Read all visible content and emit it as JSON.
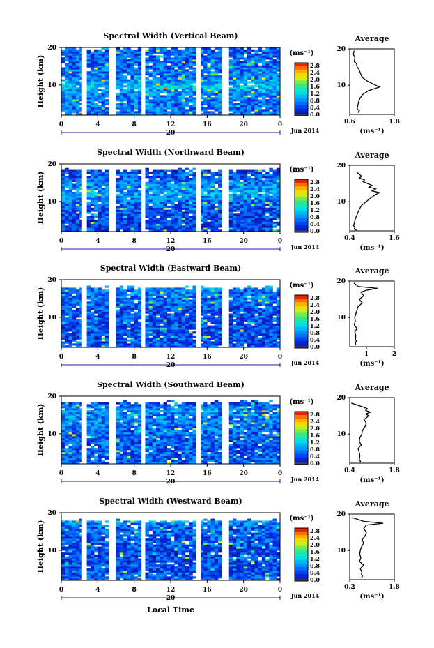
{
  "figure": {
    "xlabel": "Local Time",
    "date_label": "Jun 2014",
    "day_label": "20",
    "ylabel": "Height (km)",
    "cb_title": "(ms⁻¹)",
    "avg_title": "Average",
    "avg_xlabel": "(ms⁻¹)"
  },
  "chart_data": [
    {
      "type": "heatmap",
      "title": "Spectral Width (Vertical Beam)",
      "x_ticks": [
        "0",
        "4",
        "8",
        "12",
        "16",
        "20",
        "0"
      ],
      "y_ticks": [
        "20",
        "10"
      ],
      "cb_ticks": [
        "2.8",
        "2.4",
        "2.0",
        "1.6",
        "1.2",
        "0.8",
        "0.4",
        "0.0"
      ],
      "xlim": [
        0,
        24
      ],
      "ylim": [
        2,
        20
      ],
      "crange": [
        0,
        3.0
      ],
      "top_km": 19.5,
      "gaps": [
        [
          2.2,
          2.6
        ],
        [
          5.4,
          5.8
        ],
        [
          8.8,
          9.2
        ],
        [
          14.9,
          15.3
        ],
        [
          17.8,
          18.2
        ]
      ],
      "profile": {
        "xlim": [
          0.6,
          1.8
        ],
        "xticks": [
          "0.6",
          "1.8"
        ],
        "x": [
          0.72,
          0.7,
          0.74,
          0.72,
          0.78,
          0.8,
          0.84,
          0.86,
          0.9,
          0.92,
          0.96,
          1.02,
          1.1,
          1.2,
          1.3,
          1.4,
          1.1,
          0.95,
          0.88,
          0.84,
          0.82,
          0.8,
          0.86,
          0.82
        ],
        "y": [
          19.5,
          18.5,
          17.5,
          16.5,
          16.0,
          15.0,
          14.5,
          14.0,
          13.0,
          12.5,
          12.0,
          11.5,
          11.0,
          10.5,
          10.0,
          9.5,
          8.5,
          7.5,
          6.5,
          5.5,
          4.5,
          3.5,
          3.0,
          2.5
        ]
      }
    },
    {
      "type": "heatmap",
      "title": "Spectral Width (Northward Beam)",
      "x_ticks": [
        "0",
        "4",
        "8",
        "12",
        "16",
        "20",
        "0"
      ],
      "y_ticks": [
        "20",
        "10"
      ],
      "cb_ticks": [
        "2.8",
        "2.4",
        "2.0",
        "1.6",
        "1.2",
        "0.8",
        "0.4",
        "0.0"
      ],
      "xlim": [
        0,
        24
      ],
      "ylim": [
        2,
        20
      ],
      "crange": [
        0,
        3.0
      ],
      "top_km": 18.0,
      "gaps": [
        [
          2.2,
          2.6
        ],
        [
          5.4,
          5.8
        ],
        [
          8.8,
          9.2
        ],
        [
          14.9,
          15.3
        ],
        [
          17.8,
          18.2
        ]
      ],
      "profile": {
        "xlim": [
          0.4,
          1.6
        ],
        "xticks": [
          "0.4",
          "1.6"
        ],
        "x": [
          0.6,
          0.72,
          0.66,
          0.8,
          0.76,
          0.88,
          1.0,
          0.92,
          1.1,
          1.0,
          1.2,
          1.1,
          0.96,
          0.84,
          0.72,
          0.66,
          0.62,
          0.58,
          0.54,
          0.52,
          0.5,
          0.54,
          0.52,
          0.58
        ],
        "y": [
          18.0,
          17.0,
          16.5,
          16.0,
          15.5,
          15.0,
          14.5,
          14.0,
          13.5,
          13.0,
          12.5,
          12.0,
          11.0,
          10.0,
          9.0,
          8.0,
          7.0,
          6.0,
          5.0,
          4.0,
          3.5,
          3.0,
          2.5,
          2.2
        ]
      }
    },
    {
      "type": "heatmap",
      "title": "Spectral Width (Eastward Beam)",
      "x_ticks": [
        "0",
        "4",
        "8",
        "12",
        "16",
        "20",
        "0"
      ],
      "y_ticks": [
        "20",
        "10"
      ],
      "cb_ticks": [
        "2.8",
        "2.4",
        "2.0",
        "1.6",
        "1.2",
        "0.8",
        "0.4",
        "0.0"
      ],
      "xlim": [
        0,
        24
      ],
      "ylim": [
        2,
        20
      ],
      "crange": [
        0,
        3.0
      ],
      "top_km": 17.5,
      "gaps": [
        [
          2.2,
          2.6
        ],
        [
          5.4,
          5.8
        ],
        [
          8.8,
          9.2
        ],
        [
          14.9,
          15.3
        ],
        [
          17.8,
          18.2
        ]
      ],
      "profile": {
        "xlim": [
          0.4,
          2.0
        ],
        "xticks": [
          "1",
          "2"
        ],
        "x": [
          0.55,
          0.7,
          1.4,
          1.0,
          0.8,
          0.9,
          0.75,
          0.85,
          0.7,
          0.66,
          0.62,
          0.58,
          0.6,
          0.56,
          0.66,
          0.58,
          0.62,
          0.6,
          0.64,
          0.6,
          0.62
        ],
        "y": [
          19.5,
          18.5,
          18.0,
          17.5,
          17.0,
          16.0,
          15.0,
          14.0,
          13.0,
          12.0,
          11.0,
          10.0,
          9.0,
          8.0,
          7.0,
          6.0,
          5.0,
          4.0,
          3.5,
          3.0,
          2.5
        ]
      }
    },
    {
      "type": "heatmap",
      "title": "Spectral Width (Southward Beam)",
      "x_ticks": [
        "0",
        "4",
        "8",
        "12",
        "16",
        "20",
        "0"
      ],
      "y_ticks": [
        "20",
        "10"
      ],
      "cb_ticks": [
        "2.8",
        "2.4",
        "2.0",
        "1.6",
        "1.2",
        "0.8",
        "0.4",
        "0.0"
      ],
      "xlim": [
        0,
        24
      ],
      "ylim": [
        2,
        20
      ],
      "crange": [
        0,
        3.0
      ],
      "top_km": 18.0,
      "gaps": [
        [
          2.2,
          2.6
        ],
        [
          5.4,
          5.8
        ],
        [
          8.8,
          9.2
        ],
        [
          14.9,
          15.3
        ],
        [
          17.8,
          18.2
        ]
      ],
      "profile": {
        "xlim": [
          0.4,
          1.8
        ],
        "xticks": [
          "0.4",
          "1.8"
        ],
        "x": [
          0.45,
          0.8,
          0.95,
          0.9,
          1.05,
          0.9,
          1.0,
          0.85,
          0.92,
          0.88,
          0.8,
          0.78,
          0.72,
          0.7,
          0.76,
          0.66,
          0.7,
          0.72,
          0.7,
          0.74,
          0.72
        ],
        "y": [
          18.5,
          17.5,
          17.0,
          16.5,
          16.0,
          15.5,
          15.0,
          14.0,
          13.0,
          12.0,
          11.0,
          10.0,
          9.0,
          8.0,
          7.0,
          6.0,
          5.0,
          4.0,
          3.0,
          2.5,
          2.2
        ]
      }
    },
    {
      "type": "heatmap",
      "title": "Spectral Width (Westward Beam)",
      "x_ticks": [
        "0",
        "4",
        "8",
        "12",
        "16",
        "20",
        "0"
      ],
      "y_ticks": [
        "20",
        "10"
      ],
      "cb_ticks": [
        "2.8",
        "2.4",
        "2.0",
        "1.6",
        "1.2",
        "0.8",
        "0.4",
        "0.0"
      ],
      "xlim": [
        0,
        24
      ],
      "ylim": [
        2,
        20
      ],
      "crange": [
        0,
        3.0
      ],
      "top_km": 17.5,
      "gaps": [
        [
          2.2,
          2.6
        ],
        [
          5.4,
          5.8
        ],
        [
          8.8,
          9.2
        ],
        [
          14.9,
          15.3
        ],
        [
          17.8,
          18.2
        ]
      ],
      "profile": {
        "xlim": [
          0.2,
          1.8
        ],
        "xticks": [
          "0.2",
          "1.8"
        ],
        "x": [
          0.3,
          0.7,
          1.4,
          0.8,
          0.7,
          0.8,
          0.75,
          0.65,
          0.7,
          0.62,
          0.58,
          0.56,
          0.6,
          0.55,
          0.7,
          0.58,
          0.64,
          0.62,
          0.66,
          0.62
        ],
        "y": [
          19.0,
          18.0,
          17.5,
          17.0,
          16.0,
          15.0,
          14.0,
          13.0,
          12.0,
          11.0,
          10.0,
          9.0,
          8.0,
          7.0,
          6.0,
          5.0,
          4.0,
          3.5,
          3.0,
          2.5
        ]
      }
    }
  ]
}
